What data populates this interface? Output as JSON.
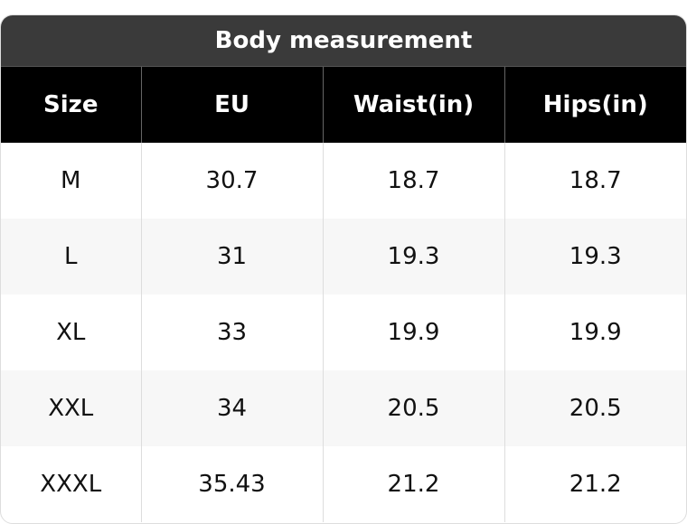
{
  "table": {
    "title": "Body measurement",
    "header": [
      "Size",
      "EU",
      "Waist(in)",
      "Hips(in)"
    ],
    "rows": [
      [
        "M",
        "30.7",
        "18.7",
        "18.7"
      ],
      [
        "L",
        "31",
        "19.3",
        "19.3"
      ],
      [
        "XL",
        "33",
        "19.9",
        "19.9"
      ],
      [
        "XXL",
        "34",
        "20.5",
        "20.5"
      ],
      [
        "XXXL",
        "35.43",
        "21.2",
        "21.2"
      ]
    ]
  }
}
